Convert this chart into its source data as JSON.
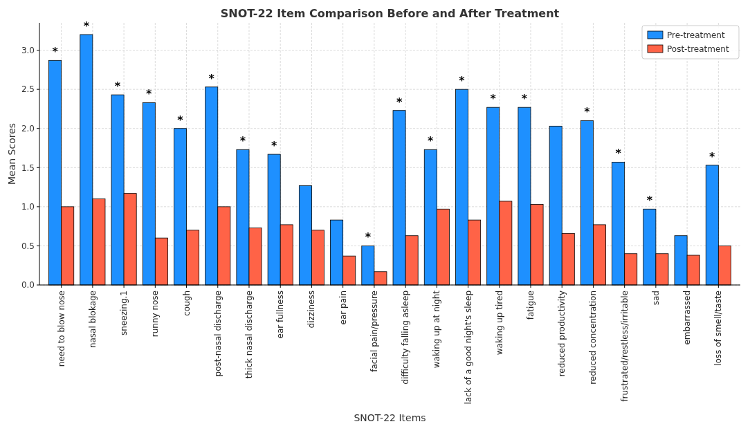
{
  "chart_data": {
    "type": "bar",
    "title": "SNOT-22 Item Comparison Before and After Treatment",
    "xlabel": "SNOT-22 Items",
    "ylabel": "Mean Scores",
    "categories": [
      "need to blow nose",
      "nasal blokage",
      "sneezing.1",
      "runny nose",
      "cough",
      "post-nasal discharge",
      "thick nasal discharge",
      "ear fullness",
      "dizziness",
      "ear pain",
      "facial pain/pressure",
      "difficulty falling asleep",
      "waking up at night",
      "lack of a good night's sleep",
      "waking up tired",
      "fatigue",
      "reduced productivity",
      "reduced concentration",
      "frustrated/restless/irritable",
      "sad",
      "embarrassed",
      "loss of smell/taste"
    ],
    "series": [
      {
        "name": "Pre-treatment",
        "color": "#1e90ff",
        "values": [
          2.87,
          3.2,
          2.43,
          2.33,
          2.0,
          2.53,
          1.73,
          1.67,
          1.27,
          0.83,
          0.5,
          2.23,
          1.73,
          2.5,
          2.27,
          2.27,
          2.03,
          2.1,
          1.57,
          0.97,
          0.63,
          1.53
        ]
      },
      {
        "name": "Post-treatment",
        "color": "#ff6347",
        "values": [
          1.0,
          1.1,
          1.17,
          0.6,
          0.7,
          1.0,
          0.73,
          0.77,
          0.7,
          0.37,
          0.17,
          0.63,
          0.97,
          0.83,
          1.07,
          1.03,
          0.66,
          0.77,
          0.4,
          0.4,
          0.38,
          0.5
        ]
      }
    ],
    "ylim": [
      0,
      3.35
    ],
    "yticks": [
      {
        "value": 0,
        "label": "0.0"
      },
      {
        "value": 0.5,
        "label": "0.5"
      },
      {
        "value": 1,
        "label": "1.0"
      },
      {
        "value": 1.5,
        "label": "1.5"
      },
      {
        "value": 2,
        "label": "2.0"
      },
      {
        "value": 2.5,
        "label": "2.5"
      },
      {
        "value": 3,
        "label": "3.0"
      }
    ],
    "grid": true,
    "legend": "top right",
    "annotations": [
      {
        "text": "*",
        "x": "need to blow nose",
        "y": 2.87
      },
      {
        "text": "*",
        "x": "nasal blokage",
        "y": 3.2
      },
      {
        "text": "*",
        "x": "sneezing.1",
        "y": 2.43
      },
      {
        "text": "*",
        "x": "runny nose",
        "y": 2.33
      },
      {
        "text": "*",
        "x": "cough",
        "y": 2.0
      },
      {
        "text": "*",
        "x": "post-nasal discharge",
        "y": 2.53
      },
      {
        "text": "*",
        "x": "thick nasal discharge",
        "y": 1.73
      },
      {
        "text": "*",
        "x": "ear fullness",
        "y": 1.67
      },
      {
        "text": "*",
        "x": "facial pain/pressure",
        "y": 0.5
      },
      {
        "text": "*",
        "x": "difficulty falling asleep",
        "y": 2.23
      },
      {
        "text": "*",
        "x": "waking up at night",
        "y": 1.73
      },
      {
        "text": "*",
        "x": "lack of a good night's sleep",
        "y": 2.5
      },
      {
        "text": "*",
        "x": "waking up tired",
        "y": 2.27
      },
      {
        "text": "*",
        "x": "fatigue",
        "y": 2.27
      },
      {
        "text": "*",
        "x": "reduced concentration",
        "y": 2.1
      },
      {
        "text": "*",
        "x": "frustrated/restless/irritable",
        "y": 1.57
      },
      {
        "text": "*",
        "x": "sad",
        "y": 0.97
      },
      {
        "text": "*",
        "x": "loss of smell/taste",
        "y": 1.53
      }
    ]
  }
}
